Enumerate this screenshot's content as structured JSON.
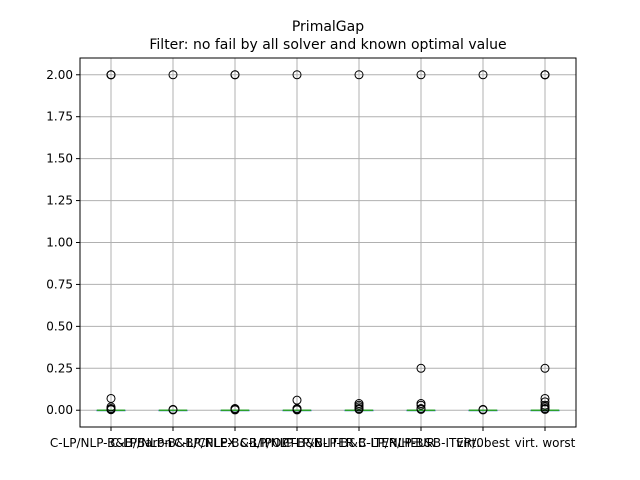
{
  "chart_data": {
    "type": "box",
    "title": "PrimalGap",
    "subtitle": "Filter: no fail by all solver and known optimal value",
    "xlabel": "",
    "ylabel": "",
    "ylim": [
      -0.1,
      2.1
    ],
    "grid": true,
    "y_ticks": [
      0.0,
      0.25,
      0.5,
      0.75,
      1.0,
      1.25,
      1.5,
      1.75,
      2.0
    ],
    "y_tick_labels": [
      "0.00",
      "0.25",
      "0.50",
      "0.75",
      "1.00",
      "1.25",
      "1.50",
      "1.75",
      "2.00"
    ],
    "categories": [
      "C-LP/NLP-B&B/Baron",
      "C-LP/NLP-B&B/CPLEX",
      "C-LP/NLP-B&B/IPOPT",
      "C-LP/NLP-B&B-ITER",
      "C-LP/NLP-B&B-ITER/HEUR",
      "C-LP/NLP-B&B-ITER/0",
      "virt. best",
      "virt. worst"
    ],
    "boxes": [
      {
        "q1": 0.0,
        "median": 0.0,
        "q3": 0.0,
        "whisker_low": 0.0,
        "whisker_high": 0.0,
        "fliers": [
          2.0,
          2.0,
          2.0,
          0.07,
          0.02,
          0.01,
          0.005,
          0.003
        ]
      },
      {
        "q1": 0.0,
        "median": 0.0,
        "q3": 0.0,
        "whisker_low": 0.0,
        "whisker_high": 0.0,
        "fliers": [
          2.0,
          0.005,
          0.002
        ]
      },
      {
        "q1": 0.0,
        "median": 0.0,
        "q3": 0.0,
        "whisker_low": 0.0,
        "whisker_high": 0.0,
        "fliers": [
          2.0,
          2.0,
          0.01,
          0.005,
          0.002
        ]
      },
      {
        "q1": 0.0,
        "median": 0.0,
        "q3": 0.0,
        "whisker_low": 0.0,
        "whisker_high": 0.0,
        "fliers": [
          2.0,
          0.06,
          0.01,
          0.005,
          0.002
        ]
      },
      {
        "q1": 0.0,
        "median": 0.0,
        "q3": 0.0,
        "whisker_low": 0.0,
        "whisker_high": 0.0,
        "fliers": [
          2.0,
          0.04,
          0.03,
          0.02,
          0.01,
          0.005
        ]
      },
      {
        "q1": 0.0,
        "median": 0.0,
        "q3": 0.0,
        "whisker_low": 0.0,
        "whisker_high": 0.0,
        "fliers": [
          2.0,
          0.25,
          0.04,
          0.03,
          0.01,
          0.005
        ]
      },
      {
        "q1": 0.0,
        "median": 0.0,
        "q3": 0.0,
        "whisker_low": 0.0,
        "whisker_high": 0.0,
        "fliers": [
          2.0,
          0.005,
          0.002
        ]
      },
      {
        "q1": 0.0,
        "median": 0.0,
        "q3": 0.0,
        "whisker_low": 0.0,
        "whisker_high": 0.0,
        "fliers": [
          2.0,
          2.0,
          2.0,
          0.25,
          0.07,
          0.05,
          0.03,
          0.02,
          0.01,
          0.005
        ]
      }
    ],
    "colors": {
      "box": "#1f77b4",
      "median": "#2ca02c",
      "flier": "#000000",
      "grid": "#b0b0b0",
      "axis": "#000000"
    }
  }
}
